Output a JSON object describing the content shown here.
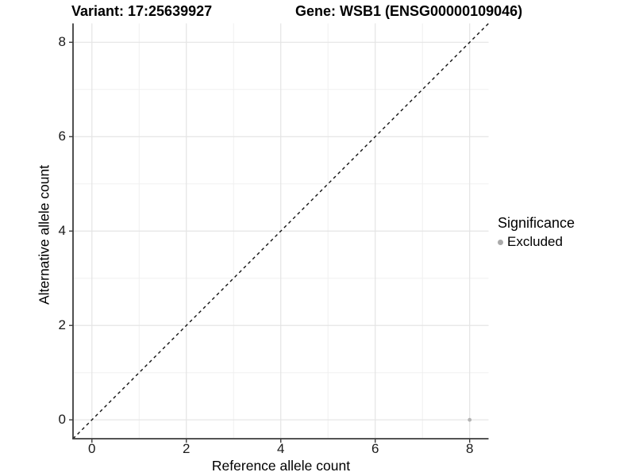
{
  "titles": {
    "variant": "Variant: 17:25639927",
    "gene": "Gene: WSB1 (ENSG00000109046)"
  },
  "axes": {
    "x_label": "Reference allele count",
    "y_label": "Alternative allele count"
  },
  "legend": {
    "title": "Significance",
    "items": [
      {
        "label": "Excluded",
        "color": "#aaaaaa"
      }
    ]
  },
  "chart_data": {
    "type": "scatter",
    "title_left": "Variant: 17:25639927",
    "title_right": "Gene: WSB1 (ENSG00000109046)",
    "xlabel": "Reference allele count",
    "ylabel": "Alternative allele count",
    "xlim": [
      -0.4,
      8.4
    ],
    "ylim": [
      -0.4,
      8.4
    ],
    "x_major_ticks": [
      0,
      2,
      4,
      6,
      8
    ],
    "y_major_ticks": [
      0,
      2,
      4,
      6,
      8
    ],
    "x_minor_gridlines": [
      1,
      3,
      5,
      7
    ],
    "y_minor_gridlines": [
      1,
      3,
      5,
      7
    ],
    "grid": true,
    "aspect": "fixed 1:1",
    "reference_line": {
      "kind": "identity y=x",
      "style": "dashed",
      "color": "#111111"
    },
    "series": [
      {
        "name": "Excluded",
        "color": "#b3b3b3",
        "points": [
          {
            "x": 8,
            "y": 0
          }
        ]
      }
    ],
    "legend_position": "right",
    "colors": {
      "axis_line": "#3c3c3c",
      "grid_major": "#e4e4e4",
      "grid_minor": "#f0f0f0",
      "point": "#b3b3b3",
      "background": "#ffffff"
    }
  }
}
